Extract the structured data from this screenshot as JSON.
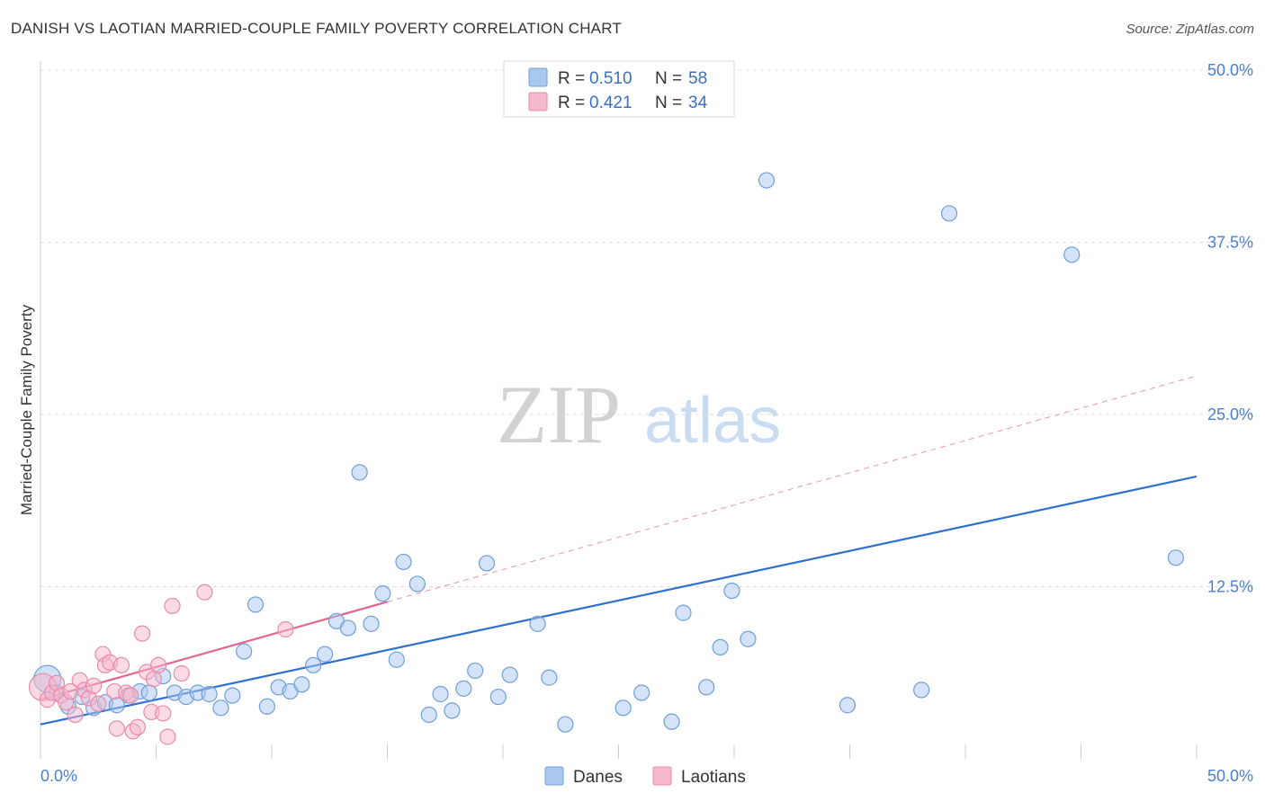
{
  "title": "DANISH VS LAOTIAN MARRIED-COUPLE FAMILY POVERTY CORRELATION CHART",
  "source": "Source: ZipAtlas.com",
  "watermark": {
    "zip": "ZIP",
    "atlas": "atlas"
  },
  "colors": {
    "danes_fill": "#a9c8ef",
    "danes_stroke": "#6f9fd8",
    "danes_line": "#2f6fcf",
    "laotians_fill": "#f6b8cb",
    "laotians_stroke": "#e98aaa",
    "laotians_line": "#e0668f",
    "grid": "#dddddd",
    "tick_text": "#4a7fd0"
  },
  "legend": {
    "r_label": "R =",
    "n_label": "N =",
    "rows": [
      {
        "r": "0.510",
        "n": "58"
      },
      {
        "r": "0.421",
        "n": "34"
      }
    ]
  },
  "chart_data": {
    "type": "scatter",
    "title": "DANISH VS LAOTIAN MARRIED-COUPLE FAMILY POVERTY CORRELATION CHART",
    "xlabel": "",
    "ylabel": "Married-Couple Family Poverty",
    "xlim": [
      0,
      50
    ],
    "ylim": [
      0,
      50
    ],
    "x_tick_labels": [
      "0.0%",
      "50.0%"
    ],
    "y_ticks": [
      12.5,
      25.0,
      37.5,
      50.0
    ],
    "y_tick_labels": [
      "12.5%",
      "25.0%",
      "37.5%",
      "50.0%"
    ],
    "grid": true,
    "legend_position": "top-center",
    "series": [
      {
        "name": "Danes",
        "r": 0.51,
        "n": 58,
        "trend": {
          "x": [
            0,
            50
          ],
          "y": [
            2.5,
            20.5
          ],
          "style": "solid"
        },
        "points": [
          {
            "x": 0.3,
            "y": 5.8,
            "big": true
          },
          {
            "x": 0.7,
            "y": 4.8
          },
          {
            "x": 1.2,
            "y": 3.8
          },
          {
            "x": 1.8,
            "y": 4.5
          },
          {
            "x": 2.3,
            "y": 3.7
          },
          {
            "x": 2.8,
            "y": 4.1
          },
          {
            "x": 3.3,
            "y": 3.9
          },
          {
            "x": 3.8,
            "y": 4.6
          },
          {
            "x": 4.3,
            "y": 4.9
          },
          {
            "x": 4.7,
            "y": 4.8
          },
          {
            "x": 5.3,
            "y": 6.0
          },
          {
            "x": 5.8,
            "y": 4.8
          },
          {
            "x": 6.3,
            "y": 4.5
          },
          {
            "x": 6.8,
            "y": 4.8
          },
          {
            "x": 7.3,
            "y": 4.7
          },
          {
            "x": 7.8,
            "y": 3.7
          },
          {
            "x": 8.3,
            "y": 4.6
          },
          {
            "x": 8.8,
            "y": 7.8
          },
          {
            "x": 9.3,
            "y": 11.2
          },
          {
            "x": 9.8,
            "y": 3.8
          },
          {
            "x": 10.3,
            "y": 5.2
          },
          {
            "x": 10.8,
            "y": 4.9
          },
          {
            "x": 11.3,
            "y": 5.4
          },
          {
            "x": 11.8,
            "y": 6.8
          },
          {
            "x": 12.3,
            "y": 7.6
          },
          {
            "x": 12.8,
            "y": 10.0
          },
          {
            "x": 13.3,
            "y": 9.5
          },
          {
            "x": 13.8,
            "y": 20.8
          },
          {
            "x": 14.3,
            "y": 9.8
          },
          {
            "x": 14.8,
            "y": 12.0
          },
          {
            "x": 15.4,
            "y": 7.2
          },
          {
            "x": 15.7,
            "y": 14.3
          },
          {
            "x": 16.3,
            "y": 12.7
          },
          {
            "x": 16.8,
            "y": 3.2
          },
          {
            "x": 17.3,
            "y": 4.7
          },
          {
            "x": 17.8,
            "y": 3.5
          },
          {
            "x": 18.3,
            "y": 5.1
          },
          {
            "x": 18.8,
            "y": 6.4
          },
          {
            "x": 19.3,
            "y": 14.2
          },
          {
            "x": 19.8,
            "y": 4.5
          },
          {
            "x": 20.3,
            "y": 6.1
          },
          {
            "x": 21.5,
            "y": 9.8
          },
          {
            "x": 22.0,
            "y": 5.9
          },
          {
            "x": 22.7,
            "y": 2.5
          },
          {
            "x": 25.2,
            "y": 3.7
          },
          {
            "x": 26.0,
            "y": 4.8
          },
          {
            "x": 27.3,
            "y": 2.7
          },
          {
            "x": 27.8,
            "y": 10.6
          },
          {
            "x": 28.8,
            "y": 5.2
          },
          {
            "x": 29.4,
            "y": 8.1
          },
          {
            "x": 29.9,
            "y": 12.2
          },
          {
            "x": 30.6,
            "y": 8.7
          },
          {
            "x": 31.4,
            "y": 42.0
          },
          {
            "x": 34.9,
            "y": 3.9
          },
          {
            "x": 38.1,
            "y": 5.0
          },
          {
            "x": 39.3,
            "y": 39.6
          },
          {
            "x": 44.6,
            "y": 36.6
          },
          {
            "x": 49.1,
            "y": 14.6
          }
        ]
      },
      {
        "name": "Laotians",
        "r": 0.421,
        "n": 34,
        "trend": {
          "x": [
            0,
            15
          ],
          "y": [
            4.3,
            11.4
          ],
          "style": "solid",
          "extended": {
            "x": [
              15,
              50
            ],
            "y": [
              11.4,
              27.8
            ],
            "style": "dashed"
          }
        },
        "points": [
          {
            "x": 0.1,
            "y": 5.2,
            "big": true
          },
          {
            "x": 0.3,
            "y": 4.3
          },
          {
            "x": 0.5,
            "y": 4.8
          },
          {
            "x": 0.7,
            "y": 5.5
          },
          {
            "x": 0.9,
            "y": 4.6
          },
          {
            "x": 1.1,
            "y": 4.1
          },
          {
            "x": 1.3,
            "y": 4.9
          },
          {
            "x": 1.5,
            "y": 3.2
          },
          {
            "x": 1.7,
            "y": 5.7
          },
          {
            "x": 1.9,
            "y": 5.0
          },
          {
            "x": 2.1,
            "y": 4.4
          },
          {
            "x": 2.3,
            "y": 5.3
          },
          {
            "x": 2.5,
            "y": 4.0
          },
          {
            "x": 2.7,
            "y": 7.6
          },
          {
            "x": 2.8,
            "y": 6.8
          },
          {
            "x": 3.0,
            "y": 7.0
          },
          {
            "x": 3.2,
            "y": 4.9
          },
          {
            "x": 3.3,
            "y": 2.2
          },
          {
            "x": 3.5,
            "y": 6.8
          },
          {
            "x": 3.7,
            "y": 4.8
          },
          {
            "x": 3.9,
            "y": 4.6
          },
          {
            "x": 4.0,
            "y": 2.0
          },
          {
            "x": 4.2,
            "y": 2.3
          },
          {
            "x": 4.4,
            "y": 9.1
          },
          {
            "x": 4.6,
            "y": 6.3
          },
          {
            "x": 4.8,
            "y": 3.4
          },
          {
            "x": 4.9,
            "y": 5.8
          },
          {
            "x": 5.1,
            "y": 6.8
          },
          {
            "x": 5.3,
            "y": 3.3
          },
          {
            "x": 5.5,
            "y": 1.6
          },
          {
            "x": 5.7,
            "y": 11.1
          },
          {
            "x": 6.1,
            "y": 6.2
          },
          {
            "x": 7.1,
            "y": 12.1
          },
          {
            "x": 10.6,
            "y": 9.4
          }
        ]
      }
    ]
  },
  "bottom_legend": [
    "Danes",
    "Laotians"
  ]
}
